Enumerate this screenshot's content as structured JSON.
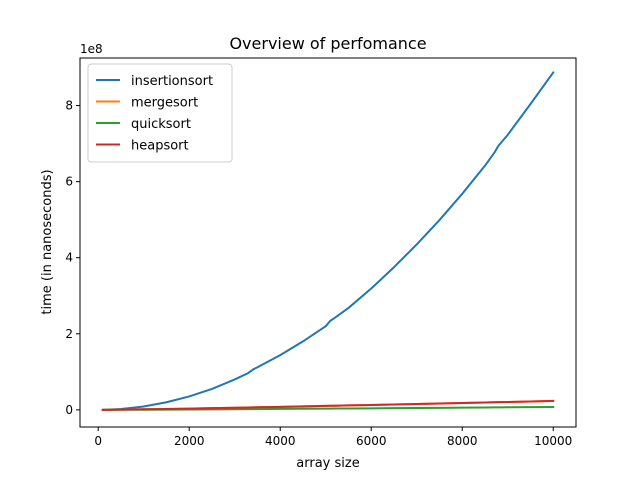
{
  "chart_data": {
    "type": "line",
    "title": "Overview of perfomance",
    "xlabel": "array size",
    "ylabel": "time (in nanoseconds)",
    "y_offset_label": "1e8",
    "xlim": [
      -400,
      10500
    ],
    "ylim": [
      -0.45,
      9.25
    ],
    "y_scale_multiplier": 100000000,
    "xticks": [
      0,
      2000,
      4000,
      6000,
      8000,
      10000
    ],
    "xtick_labels": [
      "0",
      "2000",
      "4000",
      "6000",
      "8000",
      "10000"
    ],
    "yticks": [
      0,
      2,
      4,
      6,
      8
    ],
    "ytick_labels": [
      "0",
      "2",
      "4",
      "6",
      "8"
    ],
    "grid": false,
    "legend_position": "top-left",
    "x": [
      100,
      500,
      1000,
      1500,
      2000,
      2500,
      3000,
      3300,
      3400,
      3500,
      4000,
      4500,
      5000,
      5100,
      5200,
      5500,
      6000,
      6500,
      7000,
      7500,
      8000,
      8500,
      8700,
      8800,
      9000,
      9500,
      10000
    ],
    "series": [
      {
        "name": "insertionsort",
        "color": "#1f77b4",
        "values": [
          0.0009,
          0.022,
          0.089,
          0.2,
          0.354,
          0.55,
          0.8,
          0.97,
          1.06,
          1.12,
          1.44,
          1.8,
          2.2,
          2.34,
          2.42,
          2.68,
          3.19,
          3.75,
          4.35,
          4.99,
          5.68,
          6.42,
          6.75,
          6.95,
          7.23,
          8.04,
          8.87
        ]
      },
      {
        "name": "mergesort",
        "color": "#ff7f0e",
        "values": [
          0.0015,
          0.006,
          0.015,
          0.024,
          0.034,
          0.045,
          0.056,
          0.063,
          0.066,
          0.068,
          0.08,
          0.092,
          0.104,
          0.107,
          0.109,
          0.117,
          0.129,
          0.142,
          0.155,
          0.168,
          0.181,
          0.194,
          0.2,
          0.203,
          0.208,
          0.222,
          0.236
        ]
      },
      {
        "name": "quicksort",
        "color": "#2ca02c",
        "values": [
          0.0004,
          0.002,
          0.004,
          0.007,
          0.01,
          0.013,
          0.017,
          0.019,
          0.02,
          0.021,
          0.025,
          0.029,
          0.033,
          0.034,
          0.035,
          0.037,
          0.041,
          0.046,
          0.05,
          0.054,
          0.059,
          0.063,
          0.065,
          0.066,
          0.068,
          0.072,
          0.077
        ]
      },
      {
        "name": "heapsort",
        "color": "#d62728",
        "values": [
          0.0015,
          0.006,
          0.015,
          0.024,
          0.034,
          0.045,
          0.056,
          0.063,
          0.066,
          0.068,
          0.08,
          0.092,
          0.104,
          0.107,
          0.109,
          0.117,
          0.129,
          0.142,
          0.155,
          0.168,
          0.181,
          0.194,
          0.2,
          0.203,
          0.208,
          0.222,
          0.236
        ]
      }
    ]
  }
}
